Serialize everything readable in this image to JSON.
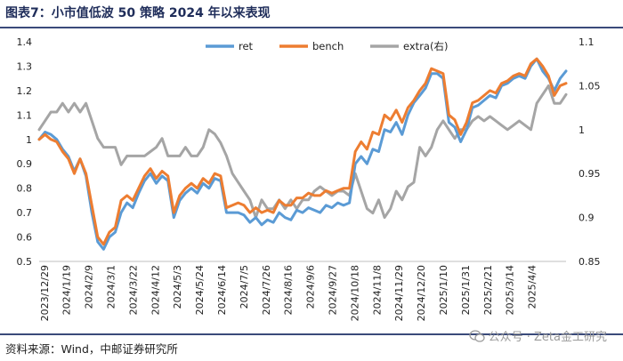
{
  "title": "图表7：小市值低波 50 策略 2024 年以来表现",
  "source": "资料来源：Wind，中邮证券研究所",
  "watermark": "公众号 · Zeta金工研究",
  "chart_data": {
    "type": "line",
    "left_axis": {
      "min": 0.5,
      "max": 1.4,
      "ticks": [
        "1.4",
        "1.3",
        "1.2",
        "1.1",
        "1",
        "0.9",
        "0.8",
        "0.7",
        "0.6",
        "0.5"
      ]
    },
    "right_axis": {
      "min": 0.85,
      "max": 1.1,
      "ticks": [
        "1.1",
        "1.05",
        "1",
        "0.95",
        "0.9",
        "0.85"
      ]
    },
    "x_tick_labels": [
      "2023/12/29",
      "2024/1/19",
      "2024/2/9",
      "2024/3/1",
      "2024/3/22",
      "2024/4/12",
      "2024/5/3",
      "2024/5/24",
      "2024/6/14",
      "2024/7/5",
      "2024/7/26",
      "2024/8/16",
      "2024/9/6",
      "2024/9/27",
      "2024/10/18",
      "2024/11/8",
      "2024/11/29",
      "2024/12/20",
      "2025/1/10",
      "2025/1/31",
      "2025/2/21",
      "2025/3/14",
      "2025/4/4"
    ],
    "legend": [
      "ret",
      "bench",
      "extra(右)"
    ],
    "colors": {
      "ret": "#5b9bd5",
      "bench": "#ed7d31",
      "extra": "#a5a5a5"
    },
    "series": [
      {
        "name": "ret",
        "axis": "left",
        "points": [
          [
            0,
            1.0
          ],
          [
            1,
            1.03
          ],
          [
            2,
            1.02
          ],
          [
            3,
            1.0
          ],
          [
            4,
            0.96
          ],
          [
            5,
            0.93
          ],
          [
            6,
            0.87
          ],
          [
            7,
            0.92
          ],
          [
            8,
            0.85
          ],
          [
            9,
            0.7
          ],
          [
            10,
            0.58
          ],
          [
            11,
            0.55
          ],
          [
            12,
            0.6
          ],
          [
            13,
            0.62
          ],
          [
            14,
            0.7
          ],
          [
            15,
            0.74
          ],
          [
            16,
            0.72
          ],
          [
            17,
            0.78
          ],
          [
            18,
            0.83
          ],
          [
            19,
            0.86
          ],
          [
            20,
            0.82
          ],
          [
            21,
            0.85
          ],
          [
            22,
            0.83
          ],
          [
            23,
            0.68
          ],
          [
            24,
            0.75
          ],
          [
            25,
            0.78
          ],
          [
            26,
            0.8
          ],
          [
            27,
            0.78
          ],
          [
            28,
            0.82
          ],
          [
            29,
            0.8
          ],
          [
            30,
            0.84
          ],
          [
            31,
            0.83
          ],
          [
            32,
            0.7
          ],
          [
            33,
            0.7
          ],
          [
            34,
            0.7
          ],
          [
            35,
            0.69
          ],
          [
            36,
            0.66
          ],
          [
            37,
            0.68
          ],
          [
            38,
            0.65
          ],
          [
            39,
            0.67
          ],
          [
            40,
            0.66
          ],
          [
            41,
            0.7
          ],
          [
            42,
            0.68
          ],
          [
            43,
            0.67
          ],
          [
            44,
            0.71
          ],
          [
            45,
            0.7
          ],
          [
            46,
            0.72
          ],
          [
            47,
            0.71
          ],
          [
            48,
            0.7
          ],
          [
            49,
            0.73
          ],
          [
            50,
            0.72
          ],
          [
            51,
            0.74
          ],
          [
            52,
            0.73
          ],
          [
            53,
            0.74
          ],
          [
            54,
            0.9
          ],
          [
            55,
            0.93
          ],
          [
            56,
            0.9
          ],
          [
            57,
            0.96
          ],
          [
            58,
            0.95
          ],
          [
            59,
            1.04
          ],
          [
            60,
            1.03
          ],
          [
            61,
            1.07
          ],
          [
            62,
            1.02
          ],
          [
            63,
            1.1
          ],
          [
            64,
            1.15
          ],
          [
            65,
            1.18
          ],
          [
            66,
            1.21
          ],
          [
            67,
            1.27
          ],
          [
            68,
            1.27
          ],
          [
            69,
            1.25
          ],
          [
            70,
            1.07
          ],
          [
            71,
            1.05
          ],
          [
            72,
            0.99
          ],
          [
            73,
            1.04
          ],
          [
            74,
            1.13
          ],
          [
            75,
            1.14
          ],
          [
            76,
            1.16
          ],
          [
            77,
            1.18
          ],
          [
            78,
            1.17
          ],
          [
            79,
            1.22
          ],
          [
            80,
            1.23
          ],
          [
            81,
            1.25
          ],
          [
            82,
            1.26
          ],
          [
            83,
            1.25
          ],
          [
            84,
            1.3
          ],
          [
            85,
            1.33
          ],
          [
            86,
            1.28
          ],
          [
            87,
            1.25
          ],
          [
            88,
            1.2
          ],
          [
            89,
            1.25
          ],
          [
            90,
            1.28
          ]
        ]
      },
      {
        "name": "bench",
        "axis": "left",
        "points": [
          [
            0,
            1.0
          ],
          [
            1,
            1.02
          ],
          [
            2,
            1.0
          ],
          [
            3,
            0.99
          ],
          [
            4,
            0.95
          ],
          [
            5,
            0.92
          ],
          [
            6,
            0.86
          ],
          [
            7,
            0.92
          ],
          [
            8,
            0.86
          ],
          [
            9,
            0.73
          ],
          [
            10,
            0.6
          ],
          [
            11,
            0.57
          ],
          [
            12,
            0.62
          ],
          [
            13,
            0.64
          ],
          [
            14,
            0.75
          ],
          [
            15,
            0.77
          ],
          [
            16,
            0.75
          ],
          [
            17,
            0.8
          ],
          [
            18,
            0.85
          ],
          [
            19,
            0.88
          ],
          [
            20,
            0.84
          ],
          [
            21,
            0.87
          ],
          [
            22,
            0.85
          ],
          [
            23,
            0.7
          ],
          [
            24,
            0.77
          ],
          [
            25,
            0.8
          ],
          [
            26,
            0.82
          ],
          [
            27,
            0.8
          ],
          [
            28,
            0.84
          ],
          [
            29,
            0.82
          ],
          [
            30,
            0.86
          ],
          [
            31,
            0.85
          ],
          [
            32,
            0.72
          ],
          [
            33,
            0.73
          ],
          [
            34,
            0.74
          ],
          [
            35,
            0.73
          ],
          [
            36,
            0.7
          ],
          [
            37,
            0.72
          ],
          [
            38,
            0.7
          ],
          [
            39,
            0.71
          ],
          [
            40,
            0.7
          ],
          [
            41,
            0.75
          ],
          [
            42,
            0.73
          ],
          [
            43,
            0.73
          ],
          [
            44,
            0.76
          ],
          [
            45,
            0.76
          ],
          [
            46,
            0.78
          ],
          [
            47,
            0.77
          ],
          [
            48,
            0.77
          ],
          [
            49,
            0.79
          ],
          [
            50,
            0.78
          ],
          [
            51,
            0.79
          ],
          [
            52,
            0.8
          ],
          [
            53,
            0.8
          ],
          [
            54,
            0.95
          ],
          [
            55,
            0.99
          ],
          [
            56,
            0.96
          ],
          [
            57,
            1.03
          ],
          [
            58,
            1.02
          ],
          [
            59,
            1.1
          ],
          [
            60,
            1.08
          ],
          [
            61,
            1.12
          ],
          [
            62,
            1.07
          ],
          [
            63,
            1.13
          ],
          [
            64,
            1.16
          ],
          [
            65,
            1.2
          ],
          [
            66,
            1.23
          ],
          [
            67,
            1.29
          ],
          [
            68,
            1.28
          ],
          [
            69,
            1.27
          ],
          [
            70,
            1.1
          ],
          [
            71,
            1.08
          ],
          [
            72,
            1.02
          ],
          [
            73,
            1.07
          ],
          [
            74,
            1.15
          ],
          [
            75,
            1.16
          ],
          [
            76,
            1.18
          ],
          [
            77,
            1.2
          ],
          [
            78,
            1.19
          ],
          [
            79,
            1.23
          ],
          [
            80,
            1.24
          ],
          [
            81,
            1.26
          ],
          [
            82,
            1.27
          ],
          [
            83,
            1.26
          ],
          [
            84,
            1.31
          ],
          [
            85,
            1.33
          ],
          [
            86,
            1.3
          ],
          [
            87,
            1.26
          ],
          [
            88,
            1.18
          ],
          [
            89,
            1.22
          ],
          [
            90,
            1.23
          ]
        ]
      },
      {
        "name": "extra(右)",
        "axis": "right",
        "points": [
          [
            0,
            1.0
          ],
          [
            1,
            1.01
          ],
          [
            2,
            1.02
          ],
          [
            3,
            1.02
          ],
          [
            4,
            1.03
          ],
          [
            5,
            1.02
          ],
          [
            6,
            1.03
          ],
          [
            7,
            1.02
          ],
          [
            8,
            1.03
          ],
          [
            9,
            1.01
          ],
          [
            10,
            0.99
          ],
          [
            11,
            0.98
          ],
          [
            12,
            0.98
          ],
          [
            13,
            0.98
          ],
          [
            14,
            0.96
          ],
          [
            15,
            0.97
          ],
          [
            16,
            0.97
          ],
          [
            17,
            0.97
          ],
          [
            18,
            0.97
          ],
          [
            19,
            0.975
          ],
          [
            20,
            0.98
          ],
          [
            21,
            0.99
          ],
          [
            22,
            0.97
          ],
          [
            23,
            0.97
          ],
          [
            24,
            0.97
          ],
          [
            25,
            0.98
          ],
          [
            26,
            0.97
          ],
          [
            27,
            0.97
          ],
          [
            28,
            0.98
          ],
          [
            29,
            1.0
          ],
          [
            30,
            0.995
          ],
          [
            31,
            0.985
          ],
          [
            32,
            0.97
          ],
          [
            33,
            0.95
          ],
          [
            34,
            0.94
          ],
          [
            35,
            0.93
          ],
          [
            36,
            0.92
          ],
          [
            37,
            0.9
          ],
          [
            38,
            0.92
          ],
          [
            39,
            0.91
          ],
          [
            40,
            0.91
          ],
          [
            41,
            0.92
          ],
          [
            42,
            0.91
          ],
          [
            43,
            0.92
          ],
          [
            44,
            0.91
          ],
          [
            45,
            0.92
          ],
          [
            46,
            0.92
          ],
          [
            47,
            0.93
          ],
          [
            48,
            0.935
          ],
          [
            49,
            0.93
          ],
          [
            50,
            0.925
          ],
          [
            51,
            0.93
          ],
          [
            52,
            0.93
          ],
          [
            53,
            0.925
          ],
          [
            54,
            0.95
          ],
          [
            55,
            0.93
          ],
          [
            56,
            0.91
          ],
          [
            57,
            0.905
          ],
          [
            58,
            0.92
          ],
          [
            59,
            0.9
          ],
          [
            60,
            0.91
          ],
          [
            61,
            0.93
          ],
          [
            62,
            0.92
          ],
          [
            63,
            0.935
          ],
          [
            64,
            0.94
          ],
          [
            65,
            0.98
          ],
          [
            66,
            0.97
          ],
          [
            67,
            0.98
          ],
          [
            68,
            1.0
          ],
          [
            69,
            1.01
          ],
          [
            70,
            1.0
          ],
          [
            71,
            0.99
          ],
          [
            72,
            1.0
          ],
          [
            73,
            1.0
          ],
          [
            74,
            1.01
          ],
          [
            75,
            1.015
          ],
          [
            76,
            1.01
          ],
          [
            77,
            1.015
          ],
          [
            78,
            1.01
          ],
          [
            79,
            1.005
          ],
          [
            80,
            1.0
          ],
          [
            81,
            1.005
          ],
          [
            82,
            1.01
          ],
          [
            83,
            1.005
          ],
          [
            84,
            1.0
          ],
          [
            85,
            1.03
          ],
          [
            86,
            1.04
          ],
          [
            87,
            1.05
          ],
          [
            88,
            1.03
          ],
          [
            89,
            1.03
          ],
          [
            90,
            1.04
          ]
        ]
      }
    ]
  }
}
